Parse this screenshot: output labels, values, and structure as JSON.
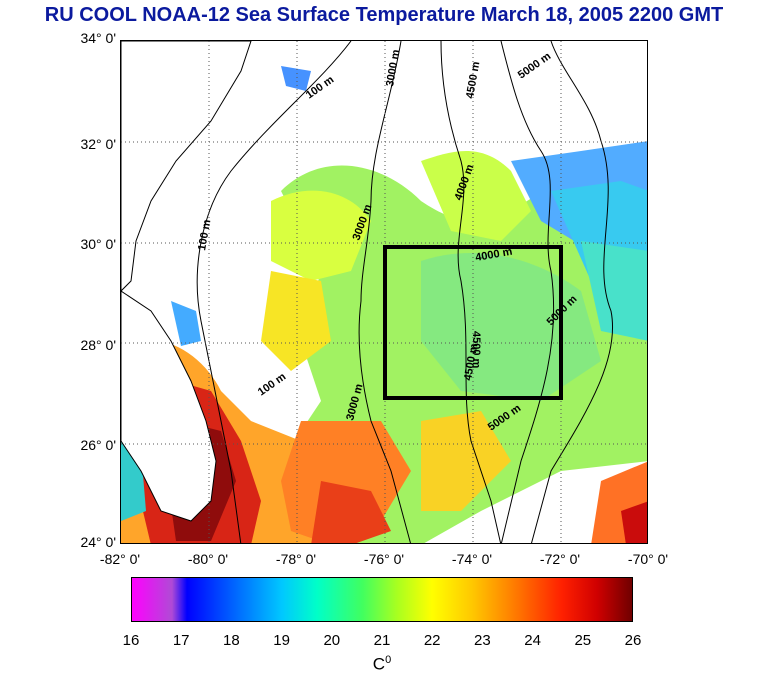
{
  "title": "RU COOL  NOAA-12 Sea Surface Temperature March 18, 2005 2200 GMT",
  "latitude_labels": [
    "34° 0'",
    "32° 0'",
    "30° 0'",
    "28° 0'",
    "26° 0'",
    "24° 0'"
  ],
  "longitude_labels": [
    "-82° 0'",
    "-80° 0'",
    "-78° 0'",
    "-76° 0'",
    "-74° 0'",
    "-72° 0'",
    "-70° 0'"
  ],
  "map_extent": {
    "lon_min": -82,
    "lon_max": -70,
    "lat_min": 24,
    "lat_max": 34
  },
  "study_box": {
    "lon_min": -76,
    "lon_max": -72,
    "lat_min": 27,
    "lat_max": 30
  },
  "contour_labels": [
    "100 m",
    "3000 m",
    "4500 m",
    "5000 m",
    "4000 m",
    "3000 m",
    "100 m",
    "4000 m",
    "5000 m",
    "4500 m",
    "3000 m",
    "100 m",
    "5000 m",
    "4500 m"
  ],
  "colorbar": {
    "ticks": [
      "16",
      "17",
      "18",
      "19",
      "20",
      "21",
      "22",
      "23",
      "24",
      "25",
      "26"
    ],
    "unit_base": "C",
    "unit_sup": "0"
  },
  "colors": {
    "title": "#0b1a9e",
    "land": "#ffffff",
    "contour": "#000000"
  }
}
